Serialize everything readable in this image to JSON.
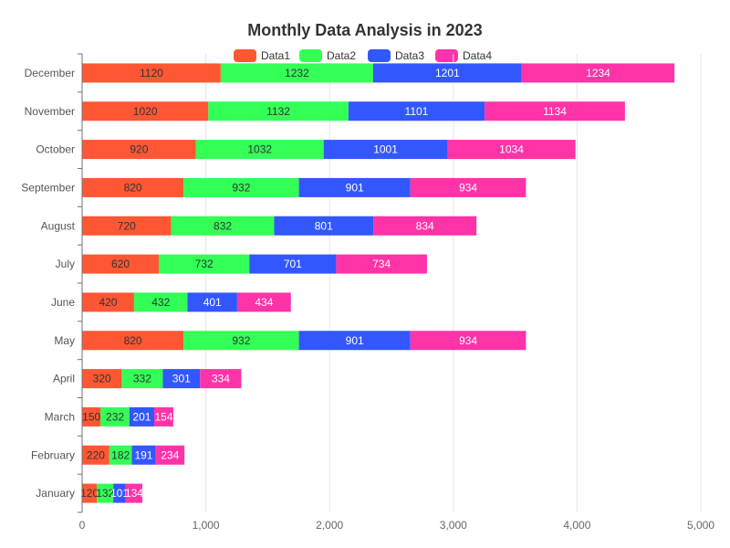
{
  "chart_data": {
    "type": "bar",
    "orientation": "horizontal",
    "stacked": true,
    "title": "Monthly Data Analysis in 2023",
    "categories": [
      "January",
      "February",
      "March",
      "April",
      "May",
      "June",
      "July",
      "August",
      "September",
      "October",
      "November",
      "December"
    ],
    "series": [
      {
        "name": "Data1",
        "color": "#ff5733",
        "label_color": "#333333",
        "values": [
          120,
          220,
          150,
          320,
          820,
          420,
          620,
          720,
          820,
          920,
          1020,
          1120
        ]
      },
      {
        "name": "Data2",
        "color": "#33ff57",
        "label_color": "#333333",
        "values": [
          132,
          182,
          232,
          332,
          932,
          432,
          732,
          832,
          932,
          1032,
          1132,
          1232
        ]
      },
      {
        "name": "Data3",
        "color": "#3357ff",
        "label_color": "#ffffff",
        "values": [
          101,
          191,
          201,
          301,
          901,
          401,
          701,
          801,
          901,
          1001,
          1101,
          1201
        ]
      },
      {
        "name": "Data4",
        "color": "#ff33a8",
        "label_color": "#ffffff",
        "values": [
          134,
          234,
          154,
          334,
          934,
          434,
          734,
          834,
          934,
          1034,
          1134,
          1234
        ]
      }
    ],
    "xlim": [
      0,
      5000
    ],
    "xticks": [
      "0",
      "1,000",
      "2,000",
      "3,000",
      "4,000",
      "5,000"
    ],
    "xtick_values": [
      0,
      1000,
      2000,
      3000,
      4000,
      5000
    ],
    "grid": true,
    "legend_position": "top-center"
  }
}
